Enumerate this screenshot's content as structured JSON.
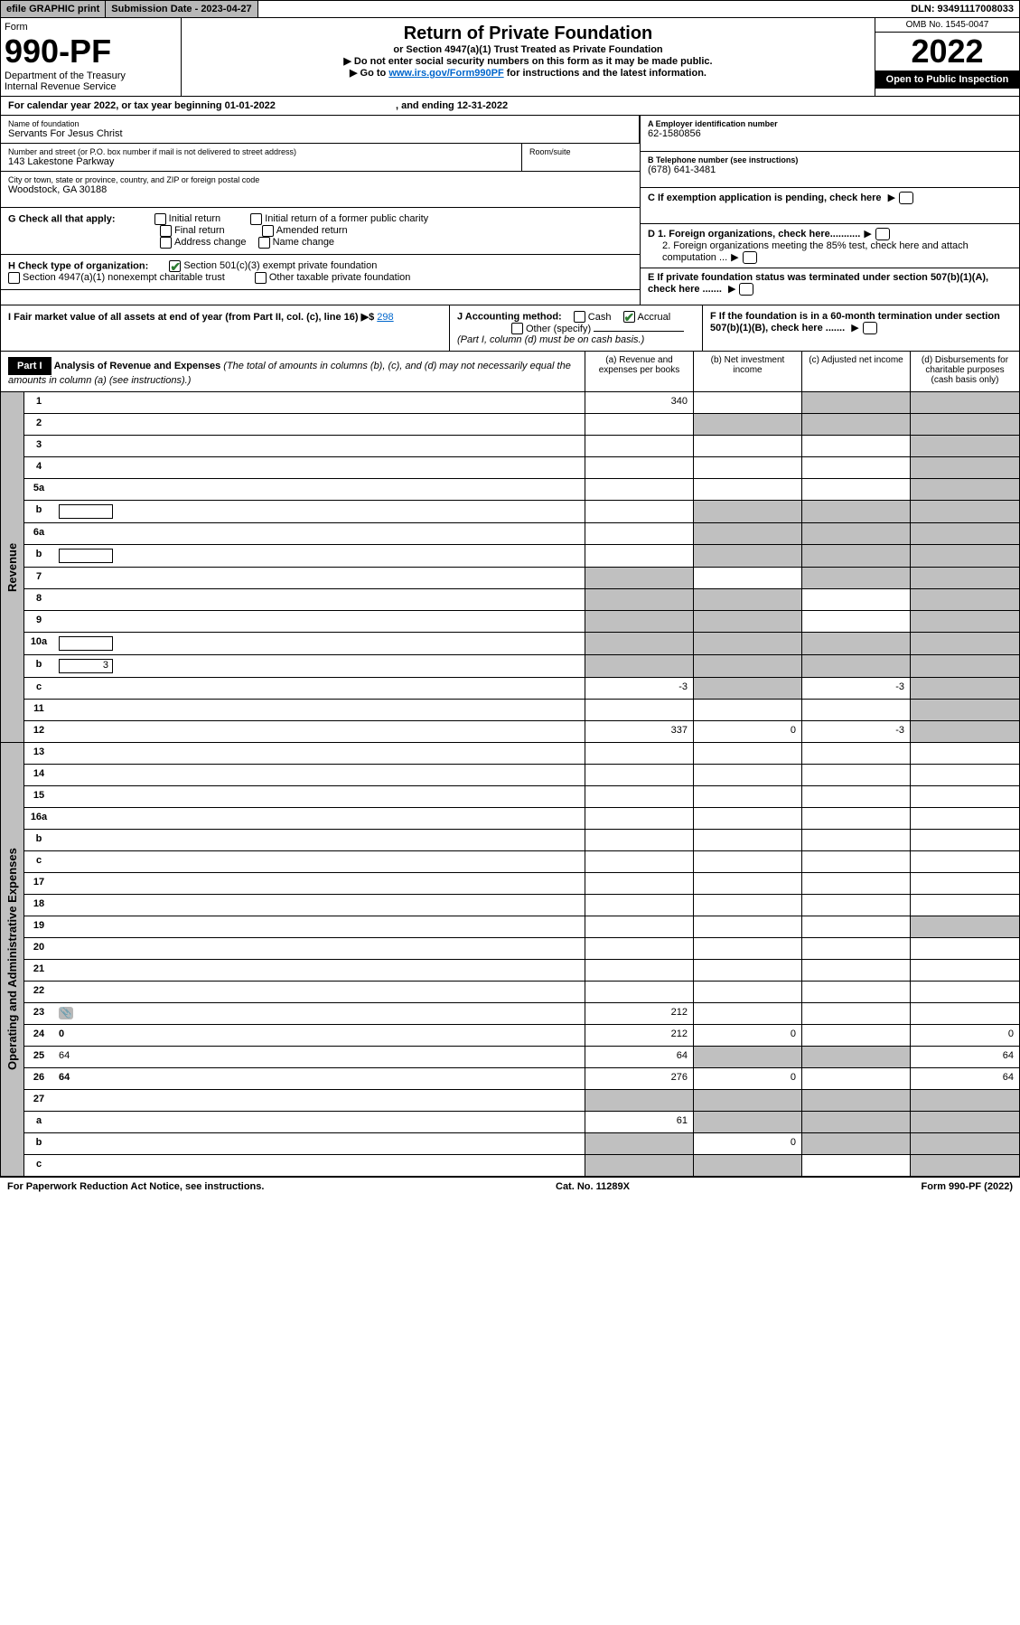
{
  "header": {
    "efile": "efile GRAPHIC print",
    "subDate": "Submission Date - 2023-04-27",
    "dln": "DLN: 93491117008033"
  },
  "formTop": {
    "form": "Form",
    "num": "990-PF",
    "dept": "Department of the Treasury",
    "irs": "Internal Revenue Service",
    "title": "Return of Private Foundation",
    "subtitle": "or Section 4947(a)(1) Trust Treated as Private Foundation",
    "note1": "▶ Do not enter social security numbers on this form as it may be made public.",
    "note2": "▶ Go to ",
    "link": "www.irs.gov/Form990PF",
    "note3": " for instructions and the latest information.",
    "omb": "OMB No. 1545-0047",
    "year": "2022",
    "openPub": "Open to Public Inspection"
  },
  "calYear": {
    "text": "For calendar year 2022, or tax year beginning 01-01-2022",
    "ending": ", and ending 12-31-2022"
  },
  "info": {
    "nameLabel": "Name of foundation",
    "name": "Servants For Jesus Christ",
    "addrLabel": "Number and street (or P.O. box number if mail is not delivered to street address)",
    "addr": "143 Lakestone Parkway",
    "suiteLabel": "Room/suite",
    "cityLabel": "City or town, state or province, country, and ZIP or foreign postal code",
    "city": "Woodstock, GA  30188",
    "einLabel": "A Employer identification number",
    "ein": "62-1580856",
    "phoneLabel": "B Telephone number (see instructions)",
    "phone": "(678) 641-3481",
    "cLabel": "C If exemption application is pending, check here",
    "d1": "D 1. Foreign organizations, check here...........",
    "d2": "2. Foreign organizations meeting the 85% test, check here and attach computation ...",
    "eLabel": "E  If private foundation status was terminated under section 507(b)(1)(A), check here .......",
    "fLabel": "F  If the foundation is in a 60-month termination under section 507(b)(1)(B), check here .......",
    "gLabel": "G Check all that apply:",
    "gOpts": [
      "Initial return",
      "Initial return of a former public charity",
      "Final return",
      "Amended return",
      "Address change",
      "Name change"
    ],
    "hLabel": "H Check type of organization:",
    "h1": "Section 501(c)(3) exempt private foundation",
    "h2": "Section 4947(a)(1) nonexempt charitable trust",
    "h3": "Other taxable private foundation",
    "iLabel": "I Fair market value of all assets at end of year (from Part II, col. (c), line 16) ▶$ ",
    "iVal": "298",
    "jLabel": "J Accounting method:",
    "jCash": "Cash",
    "jAccrual": "Accrual",
    "jOther": "Other (specify)",
    "jNote": "(Part I, column (d) must be on cash basis.)"
  },
  "part1": {
    "hdr": "Part I",
    "title": "Analysis of Revenue and Expenses",
    "titleNote": " (The total of amounts in columns (b), (c), and (d) may not necessarily equal the amounts in column (a) (see instructions).)",
    "colA": "(a)   Revenue and expenses per books",
    "colB": "(b)   Net investment income",
    "colC": "(c)   Adjusted net income",
    "colD": "(d)   Disbursements for charitable purposes (cash basis only)"
  },
  "sideLabels": {
    "rev": "Revenue",
    "exp": "Operating and Administrative Expenses"
  },
  "rows": [
    {
      "n": "1",
      "d": "",
      "a": "340",
      "b": "",
      "c": "",
      "bg": false,
      "cg": true,
      "dg": true
    },
    {
      "n": "2",
      "d": "",
      "a": "",
      "b": "",
      "c": "",
      "bg": true,
      "cg": true,
      "dg": true,
      "bold": false
    },
    {
      "n": "3",
      "d": "",
      "a": "",
      "b": "",
      "c": "",
      "bg": false,
      "cg": false,
      "dg": true
    },
    {
      "n": "4",
      "d": "",
      "a": "",
      "b": "",
      "c": "",
      "bg": false,
      "cg": false,
      "dg": true
    },
    {
      "n": "5a",
      "d": "",
      "a": "",
      "b": "",
      "c": "",
      "bg": false,
      "cg": false,
      "dg": true
    },
    {
      "n": "b",
      "d": "",
      "a": "",
      "b": "",
      "c": "",
      "bg": true,
      "cg": true,
      "dg": true,
      "hasBox": true
    },
    {
      "n": "6a",
      "d": "",
      "a": "",
      "b": "",
      "c": "",
      "bg": true,
      "cg": true,
      "dg": true
    },
    {
      "n": "b",
      "d": "",
      "a": "",
      "b": "",
      "c": "",
      "bg": true,
      "cg": true,
      "dg": true,
      "hasBox": true
    },
    {
      "n": "7",
      "d": "",
      "a": "",
      "b": "",
      "c": "",
      "bg": false,
      "cg": true,
      "dg": true,
      "ag": true
    },
    {
      "n": "8",
      "d": "",
      "a": "",
      "b": "",
      "c": "",
      "bg": true,
      "cg": false,
      "dg": true,
      "ag": true
    },
    {
      "n": "9",
      "d": "",
      "a": "",
      "b": "",
      "c": "",
      "bg": true,
      "cg": false,
      "dg": true,
      "ag": true
    },
    {
      "n": "10a",
      "d": "",
      "a": "",
      "b": "",
      "c": "",
      "bg": true,
      "cg": true,
      "dg": true,
      "hasBox": true,
      "ag": true
    },
    {
      "n": "b",
      "d": "",
      "a": "",
      "b": "",
      "c": "",
      "bg": true,
      "cg": true,
      "dg": true,
      "hasBox": true,
      "boxVal": "3",
      "ag": true
    },
    {
      "n": "c",
      "d": "",
      "a": "-3",
      "b": "",
      "c": "-3",
      "bg": true,
      "cg": false,
      "dg": true
    },
    {
      "n": "11",
      "d": "",
      "a": "",
      "b": "",
      "c": "",
      "bg": false,
      "cg": false,
      "dg": true
    },
    {
      "n": "12",
      "d": "",
      "a": "337",
      "b": "0",
      "c": "-3",
      "bg": false,
      "cg": false,
      "dg": true,
      "bold": true
    }
  ],
  "expRows": [
    {
      "n": "13",
      "d": "",
      "a": "",
      "b": "",
      "c": ""
    },
    {
      "n": "14",
      "d": "",
      "a": "",
      "b": "",
      "c": ""
    },
    {
      "n": "15",
      "d": "",
      "a": "",
      "b": "",
      "c": ""
    },
    {
      "n": "16a",
      "d": "",
      "a": "",
      "b": "",
      "c": ""
    },
    {
      "n": "b",
      "d": "",
      "a": "",
      "b": "",
      "c": ""
    },
    {
      "n": "c",
      "d": "",
      "a": "",
      "b": "",
      "c": ""
    },
    {
      "n": "17",
      "d": "",
      "a": "",
      "b": "",
      "c": ""
    },
    {
      "n": "18",
      "d": "",
      "a": "",
      "b": "",
      "c": ""
    },
    {
      "n": "19",
      "d": "",
      "a": "",
      "b": "",
      "c": "",
      "dg": true
    },
    {
      "n": "20",
      "d": "",
      "a": "",
      "b": "",
      "c": ""
    },
    {
      "n": "21",
      "d": "",
      "a": "",
      "b": "",
      "c": ""
    },
    {
      "n": "22",
      "d": "",
      "a": "",
      "b": "",
      "c": ""
    },
    {
      "n": "23",
      "d": "",
      "a": "212",
      "b": "",
      "c": "",
      "clip": true
    },
    {
      "n": "24",
      "d": "0",
      "a": "212",
      "b": "0",
      "c": "",
      "bold": true
    },
    {
      "n": "25",
      "d": "64",
      "a": "64",
      "b": "",
      "c": "",
      "bg": true,
      "cg": true
    },
    {
      "n": "26",
      "d": "64",
      "a": "276",
      "b": "0",
      "c": "",
      "bold": true
    },
    {
      "n": "27",
      "d": "",
      "a": "",
      "b": "",
      "c": "",
      "ag": true,
      "bg": true,
      "cg": true,
      "dg": true
    },
    {
      "n": "a",
      "d": "",
      "a": "61",
      "b": "",
      "c": "",
      "bold": true,
      "bg": true,
      "cg": true,
      "dg": true
    },
    {
      "n": "b",
      "d": "",
      "a": "",
      "b": "0",
      "c": "",
      "bold": true,
      "ag": true,
      "cg": true,
      "dg": true
    },
    {
      "n": "c",
      "d": "",
      "a": "",
      "b": "",
      "c": "",
      "bold": true,
      "ag": true,
      "bg": true,
      "dg": true
    }
  ],
  "footer": {
    "left": "For Paperwork Reduction Act Notice, see instructions.",
    "mid": "Cat. No. 11289X",
    "right": "Form 990-PF (2022)"
  }
}
